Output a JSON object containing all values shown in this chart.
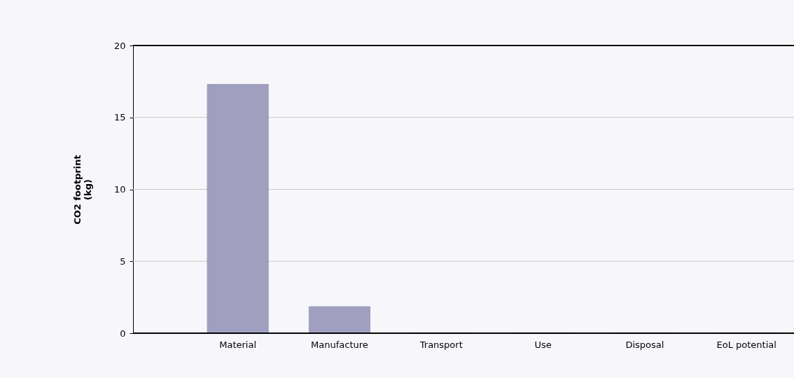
{
  "chart_data": {
    "type": "bar",
    "ylabel": "CO2 footprint (kg)",
    "categories": [
      "Material",
      "Manufacture",
      "Transport",
      "Use",
      "Disposal",
      "EoL potential"
    ],
    "values": [
      17.3,
      1.85,
      0,
      0,
      0,
      0
    ],
    "color": "#a09fbf",
    "ylim": [
      0,
      20
    ],
    "yticks": [
      0,
      5,
      10,
      15,
      20
    ],
    "grid": "y"
  }
}
